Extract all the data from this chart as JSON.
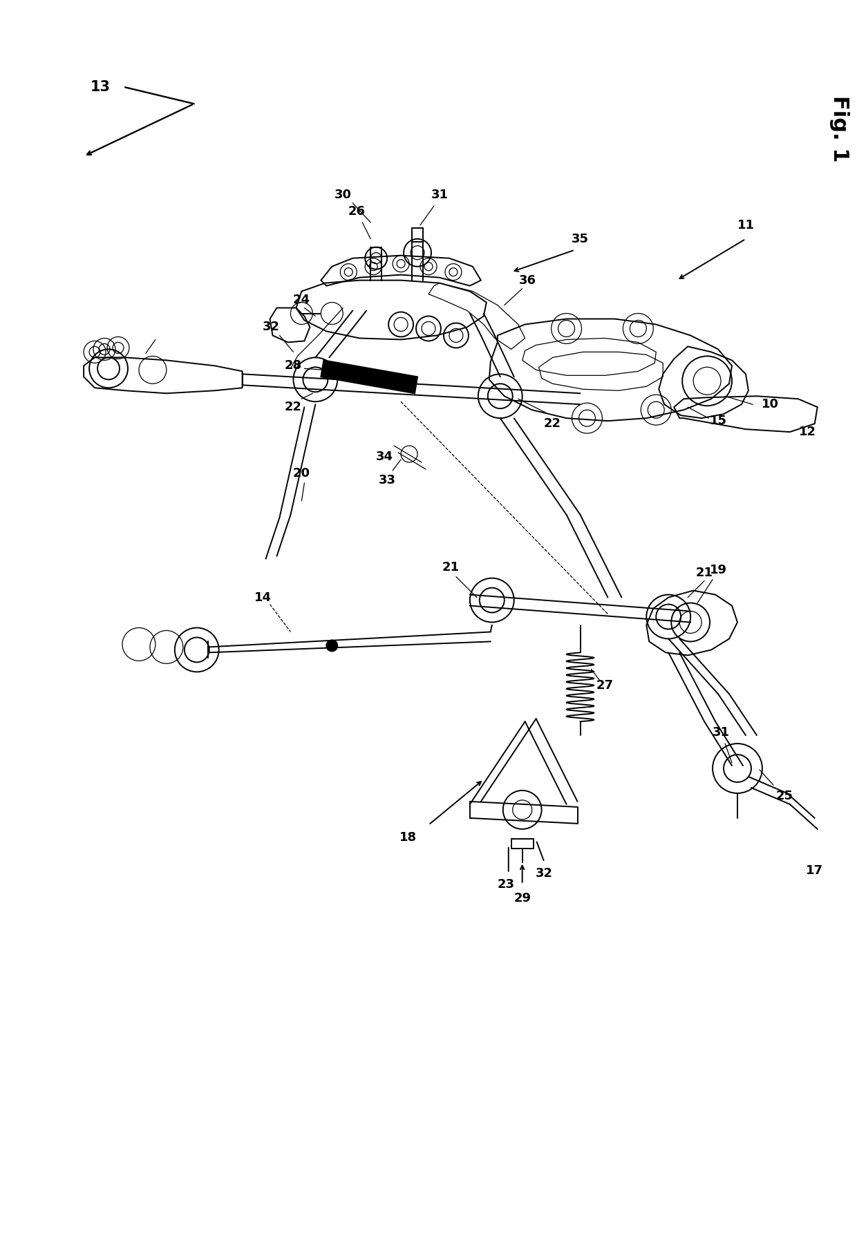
{
  "background_color": "#ffffff",
  "fig_label": "Fig. 1",
  "fig_width": 12.4,
  "fig_height": 18.09,
  "lw_main": 1.4,
  "lw_thin": 0.9,
  "lw_thick": 2.2,
  "label_fontsize": 13,
  "fig_label_fontsize": 22
}
